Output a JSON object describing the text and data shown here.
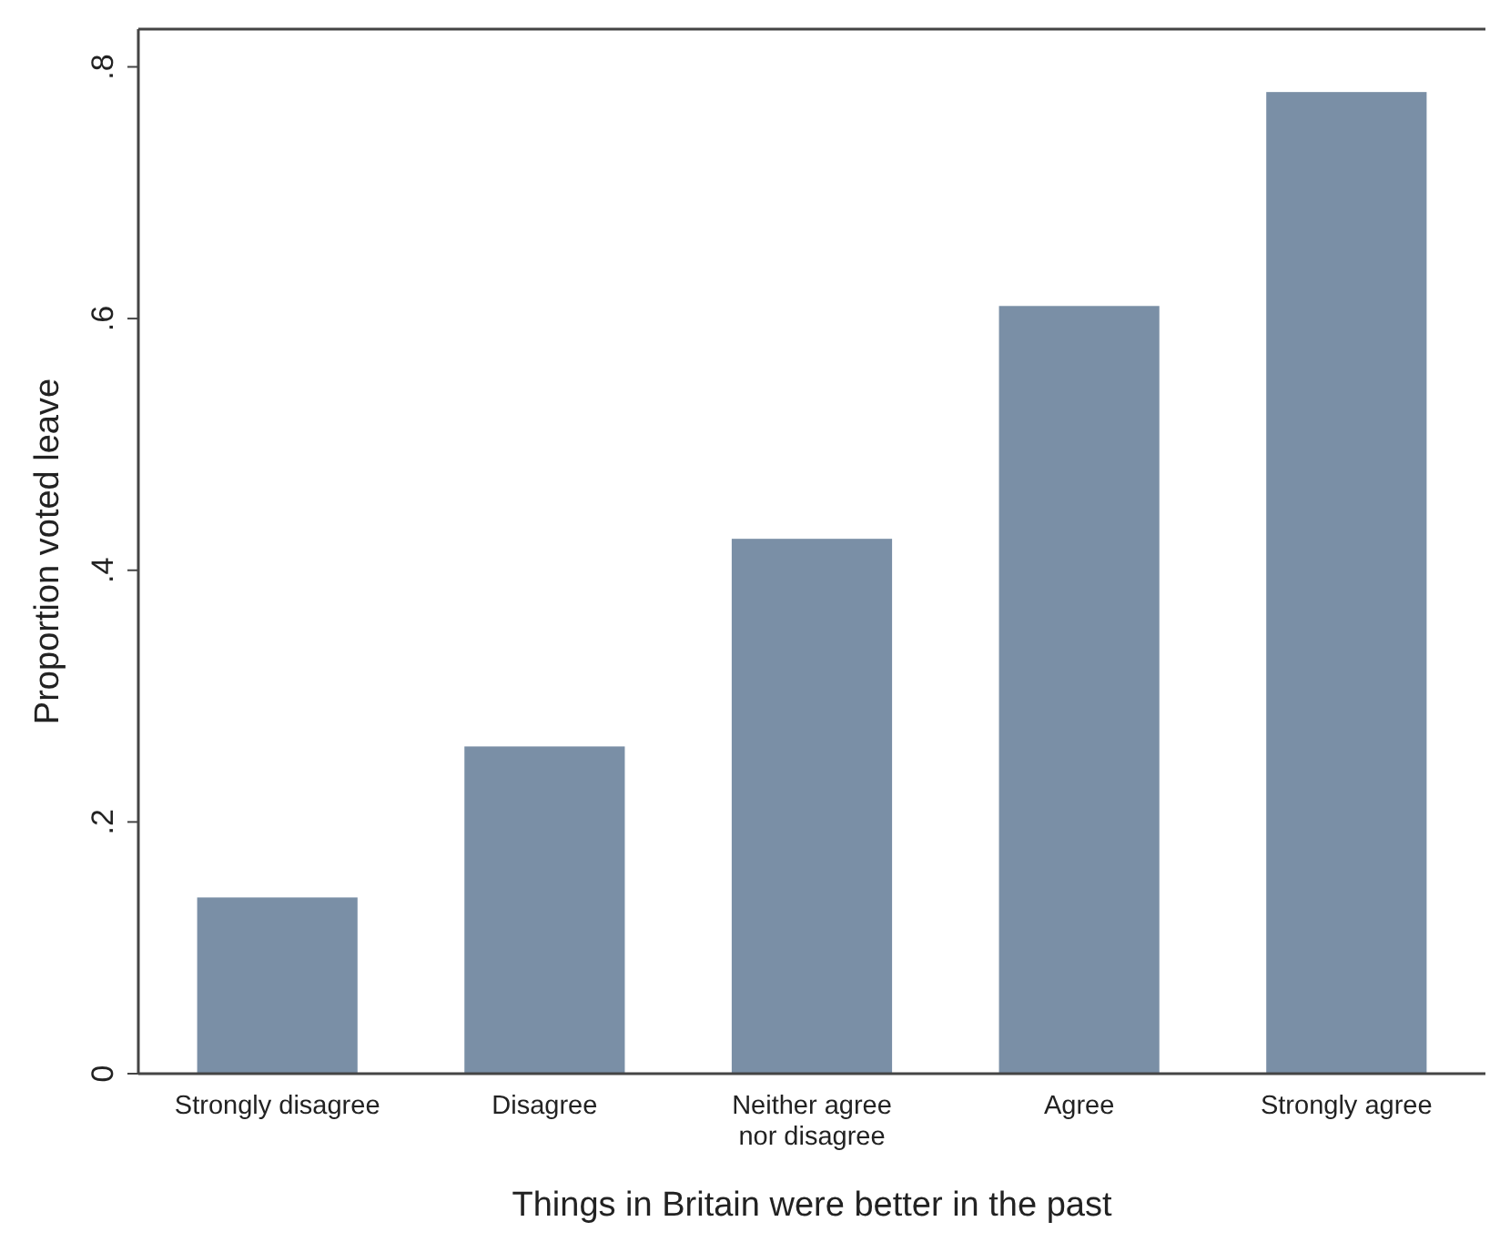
{
  "chart_data": {
    "type": "bar",
    "xlabel": "Things in Britain were better in the past",
    "ylabel": "Proportion voted leave",
    "categories": [
      "Strongly disagree",
      "Disagree",
      "Neither agree\nnor disagree",
      "Agree",
      "Strongly agree"
    ],
    "values": [
      0.14,
      0.26,
      0.425,
      0.61,
      0.78
    ],
    "color": "#7a8fa6",
    "ylim": [
      0,
      0.83
    ],
    "yticks": [
      {
        "value": 0,
        "label": "0"
      },
      {
        "value": 0.2,
        "label": ".2"
      },
      {
        "value": 0.4,
        "label": ".4"
      },
      {
        "value": 0.6,
        "label": ".6"
      },
      {
        "value": 0.8,
        "label": ".8"
      }
    ],
    "grid": false
  }
}
